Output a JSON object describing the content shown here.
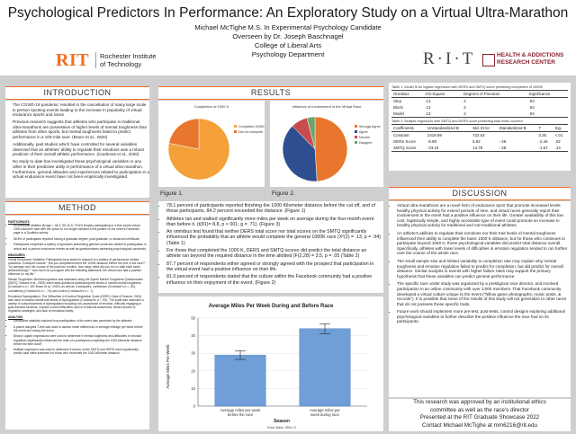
{
  "header": {
    "title": "Psychological Predictors In Performance: An Exploratory Study on a Virtual Ultra-Marathon",
    "authors": "Michael McTighe M.S. In Experimental Psychology Candidate",
    "overseen": "Overseen by Dr. Joseph Baschnagel",
    "college": "College of Liberal Arts",
    "department": "Psychology Department",
    "rit_mark": "RIT",
    "rit_name_1": "Rochester Institute",
    "rit_name_2": "of Technology",
    "hrc_mark": "R·I·T",
    "hrc_name_1": "HEALTH & ADDICTIONS",
    "hrc_name_2": "RESEARCH CENTER"
  },
  "sections": {
    "introduction": "INTRODUCTION",
    "method": "METHOD",
    "results": "RESULTS",
    "discussion": "DISCUSSION"
  },
  "introduction": [
    "The COVID-19 pandemic resulted in the cancellation of many large scale in person sporting events leading to the increase in popularity of virtual endurance sports and races",
    "Previous research suggests that athletes who participate in traditional ultra-marathons are possessive of higher levels of mental toughness than athletes from other sports, but mental toughness failed to predict performance in a 100-mile race. (Brace et al., 2020)",
    "Additionally, past studies which have controlled for several variables observed that an athletes' ability to regulate their emotions was a robust predictor of their overall athletic performance. (Cardenas et al., 2020)",
    "No study to date has investigated these psychological variables or any other in their predictive utility in performance of a virtual ultra-marathon. Furthermore, general attitudes and experiences related to participation in a virtual endurance event have not been empirically investigated."
  ],
  "method": {
    "participants_head": "PARTICIPANTS",
    "participants": [
      "85 American athletes (M age = 46.3, SD 10.6; 79.6% female) participating in a four-month virtual 1000-kilometer race with the option to run longer followed a link posted on the event's Facebook page to a Qualtrics survey.",
      "58.8% of participants reported having a graduate degree, post-graduate, or advanced certificate.",
      "Participants completed a battery of questions addressing general constructs related to participation in virtual and in-person endurance events as well as questionnaires assessing psychological constructs."
    ],
    "measures_head": "MEASURES",
    "measures": [
      "Virtual Endurance Variables: Participants were asked to respond to a battery of performance related questions. Examples include, \"Did you complete/exceed the 1000K distance before the end of the race?\", \"on average over the course of the past four months, how many miles did you run or walk each week (before/during)?\" \"how much do you agree with the following statement, the virtual race had a positive influence on my life.\"",
      "Mental Toughness: Mental toughness was assessed using the Sports Mental Toughness Questionnaire (SMTQ; Sheard et al., 2009) which asks questions addressing trait levels of overall mental toughness (Cronbach's α = .89; Brace et al., 2020), as well as 3 subscales, confidence (Cronbach's α = .80), consistency (Cronbach's α = .74) and control (Cronbach's α = .7).",
      "Emotional Dysregulation: The Difficulties in Emotion Regulation Scale (DERS; Gratz & Roemer, 2004) was used to assess overall trait levels of dysregulation (Cronbach's α = .93). The scale also assesses a variety of subcomponents of dysregulation including non-acceptance of emotion, difficulty engaging in goal-directed behavior, impulse control difficulties, lack of emotional awareness, limited access to regulation strategies, and lack of emotional clarity."
    ],
    "analysis_head": "ANALYSIS",
    "analysis": [
      "Descriptive statistics explored how participation in the event was perceived by the athletes.",
      "A paired samples T-test was used to assess mean differences in average mileage per week before the event and during the event.",
      "Binary Logistic regressions were used to determine if mental toughness and difficulties in emotion regulation significantly influenced the odds of a participant completing the 1000-kilometer distance before the time cutoff.",
      "Multiple regression was used to determine if scores on the SMTQ and DERS could significantly predict total miles traversed for those who exceeded the 1000-kilometer distance."
    ]
  },
  "figures": {
    "fig1_caption": "Figure 1.",
    "fig2_caption": "Figure 2.",
    "fig1_title": "Completion of 1000 K",
    "fig2_title": "Influence of Involvement in the Virtual Race",
    "fig1_legend": [
      "Completed 1000K",
      "Did not complete"
    ],
    "fig2_legend": [
      "Strongly Agree",
      "Agree",
      "Neutral",
      "Disagree"
    ]
  },
  "results": [
    "78.1 percent of participants reported finishing the 1000 Kilometer distance before the cut off, and of those participants, 84.2 percent exceeded the distance. (Figure 1)",
    "Athletes ran and walked significantly more miles per week on average during the four-month event than before it. (t(81)= 8.8, p < 001; g = .71). (Figure 3)",
    "An omnibus test found that neither DERS total score nor total scores on the SMTQ significantly influenced the probability that an athlete would complete the general 1000K race (X²(2) = .13, p = .94) (Table 1)",
    "For those that completed the 1000 K, DERS and SMTQ scores did predict the total distance an athlete ran beyond the required distance in the time allotted (F(2,28) = 3.5, p = .05 (Table 2)",
    "87.7 percent of respondents either agreed or strongly agreed with the prospect that participation in the virtual event had a positive influence on their life.",
    "81.0 percent of respondents stated that the culture within the Facebook community had a positive influence on their enjoyment of the event. (Figure 2)"
  ],
  "table1": {
    "caption": "Table 1. Model fit for logistic regression with DERS and SMTQ score predicting completion of 1000K",
    "headers": [
      "Omnibus",
      "Chi-Square",
      "Degrees of Freedom",
      "Significance"
    ],
    "rows": [
      [
        "Step",
        ".13",
        "2",
        ".94"
      ],
      [
        "Block",
        ".13",
        "2",
        ".94"
      ],
      [
        "Model",
        ".13",
        "2",
        ".94"
      ]
    ]
  },
  "table2": {
    "caption": "Table 2. Multiple regression with SMTQ and DERS score predicting total miles covered",
    "headers": [
      "Coefficients",
      "Unstandardized B",
      "Std. Error",
      "Standardized B",
      "T",
      "Sig."
    ],
    "rows": [
      [
        "Constant",
        "2418.59",
        "722.63",
        "",
        "3.35",
        "<.01"
      ],
      [
        "DERS Score",
        "-9.98",
        "5.92",
        "-.46",
        "-2.46",
        ".02"
      ],
      [
        "SMTQ Score",
        "-23.19",
        "14.78",
        "-.28",
        "-1.67",
        ".13"
      ]
    ]
  },
  "chart_data": [
    {
      "type": "pie",
      "title": "Completion of 1000 K",
      "labels": [
        "Completed 1000K",
        "Did not complete"
      ],
      "values": [
        78.1,
        21.9
      ],
      "colors": [
        "#f4a13a",
        "#e8762d"
      ]
    },
    {
      "type": "pie",
      "title": "Influence of Involvement in the Virtual Race",
      "labels": [
        "Strongly Agree",
        "Agree",
        "Neutral",
        "Disagree"
      ],
      "values": [
        49,
        38.7,
        8.3,
        4
      ],
      "colors": [
        "#e8762d",
        "#2e4f8f",
        "#c94b4b",
        "#6fa36a"
      ]
    },
    {
      "type": "bar",
      "title": "Average Miles Per Week During and Before Race",
      "categories": [
        "Average miles per week before the race",
        "Average miles per week during race"
      ],
      "values": [
        29,
        44
      ],
      "errors": [
        2.5,
        2.8
      ],
      "ylabel": "Average Miles Per Week",
      "xlabel": "Season",
      "yticks": [
        0,
        10,
        20,
        30,
        40,
        50
      ],
      "ylim": [
        0,
        50
      ],
      "note": "Error Bars: 95% CI",
      "color": "#6f9ed8"
    }
  ],
  "discussion": [
    "Virtual ultra-marathons are a novel form of endurance sport that promote increased levels healthy physical activity for extend periods of time, and virtual races generally report their involvement in the event had a positive influence on their life. Greater availability of this low cost, logistically simple, and highly accessible type of event could promote an increase in healthy physical activity for traditional and non-traditional athletes.",
    "An athlete's abilities to regulate their emotions nor their trait levels of mental toughness influenced their ability to complete the basic 1000 K distance, but for those who continues to participate beyond 1000 K, those psychological variables did predict total distance overall. Specifically, athletes with lower levels of difficulties in emotion regulation tended to run further over the course of the whole race.",
    "The small sample size and limited variability in completion rate may explain why mental toughness and emotion regulation failed to predict for completion, but did predict for overall distance. Similar analysis in events with higher failure rates may support the primary hypothesis that these variables can predict general performance.",
    "The specific race under study was organized by a prestigious race director, and involved participation in an online community with over 3,000 members. That Facebook community developed a virtual culture unique to the event (\"fellow game photographs, music posts, & records\"). It is possible that some of the results of this study will not generalize to other races that do not possess these specific traits.",
    "Future work should implement more pre-test, post-tests, control designs exploring additional psychological variables to further describe the positive influence the race had on its participants."
  ],
  "footer": {
    "line1": "This research was approved by an institutional ethics",
    "line2": "committee as well as the race's director",
    "line3": "Presented at the RIT Graduate Showcase 2022",
    "line4": "Contact Michael McTighe at mm6216@rit.edu"
  }
}
